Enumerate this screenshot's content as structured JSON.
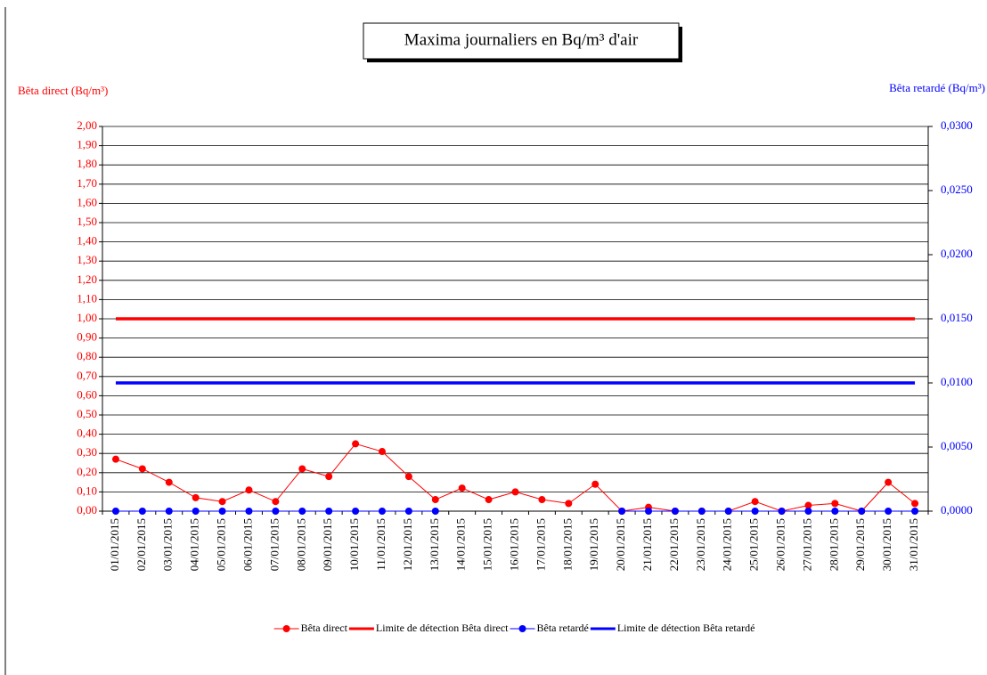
{
  "chart_data": {
    "type": "line",
    "title": "Maxima journaliers en Bq/m³ d'air",
    "ylabel": "Bêta direct (Bq/m³)",
    "y2label": "Bêta retardé (Bq/m³)",
    "categories": [
      "01/01/2015",
      "02/01/2015",
      "03/01/2015",
      "04/01/2015",
      "05/01/2015",
      "06/01/2015",
      "07/01/2015",
      "08/01/2015",
      "09/01/2015",
      "10/01/2015",
      "11/01/2015",
      "12/01/2015",
      "13/01/2015",
      "14/01/2015",
      "15/01/2015",
      "16/01/2015",
      "17/01/2015",
      "18/01/2015",
      "19/01/2015",
      "20/01/2015",
      "21/01/2015",
      "22/01/2015",
      "23/01/2015",
      "24/01/2015",
      "25/01/2015",
      "26/01/2015",
      "27/01/2015",
      "28/01/2015",
      "29/01/2015",
      "30/01/2015",
      "31/01/2015"
    ],
    "series": [
      {
        "name": "Bêta direct",
        "color": "#ff0000",
        "axis": "y",
        "markers": true,
        "values": [
          0.27,
          0.22,
          0.15,
          0.07,
          0.05,
          0.11,
          0.05,
          0.22,
          0.18,
          0.35,
          0.31,
          0.18,
          0.06,
          0.12,
          0.06,
          0.1,
          0.06,
          0.04,
          0.14,
          0.0,
          0.02,
          0.0,
          0.0,
          0.0,
          0.05,
          0.0,
          0.03,
          0.04,
          0.0,
          0.15,
          0.04
        ]
      },
      {
        "name": "Limite de détection Bêta direct",
        "color": "#ff0000",
        "axis": "y",
        "markers": false,
        "values": [
          1,
          1,
          1,
          1,
          1,
          1,
          1,
          1,
          1,
          1,
          1,
          1,
          1,
          1,
          1,
          1,
          1,
          1,
          1,
          1,
          1,
          1,
          1,
          1,
          1,
          1,
          1,
          1,
          1,
          1,
          1
        ]
      },
      {
        "name": "Bêta retardé",
        "color": "#0000ff",
        "axis": "y2",
        "markers": true,
        "values": [
          0,
          0,
          0,
          0,
          0,
          0,
          0,
          0,
          0,
          0,
          0,
          0,
          0,
          null,
          null,
          null,
          null,
          null,
          null,
          0,
          0,
          0,
          0,
          0,
          0,
          0,
          0,
          0,
          0,
          0,
          0
        ]
      },
      {
        "name": "Limite de détection Bêta retardé",
        "color": "#0000ff",
        "axis": "y2",
        "markers": false,
        "values": [
          0.01,
          0.01,
          0.01,
          0.01,
          0.01,
          0.01,
          0.01,
          0.01,
          0.01,
          0.01,
          0.01,
          0.01,
          0.01,
          0.01,
          0.01,
          0.01,
          0.01,
          0.01,
          0.01,
          0.01,
          0.01,
          0.01,
          0.01,
          0.01,
          0.01,
          0.01,
          0.01,
          0.01,
          0.01,
          0.01,
          0.01
        ]
      }
    ],
    "ylim": [
      0,
      2
    ],
    "yticks": [
      {
        "value": 0,
        "label": "0,00"
      },
      {
        "value": 0.1,
        "label": "0,10"
      },
      {
        "value": 0.2,
        "label": "0,20"
      },
      {
        "value": 0.3,
        "label": "0,30"
      },
      {
        "value": 0.4,
        "label": "0,40"
      },
      {
        "value": 0.5,
        "label": "0,50"
      },
      {
        "value": 0.6,
        "label": "0,60"
      },
      {
        "value": 0.7,
        "label": "0,70"
      },
      {
        "value": 0.8,
        "label": "0,80"
      },
      {
        "value": 0.9,
        "label": "0,90"
      },
      {
        "value": 1,
        "label": "1,00"
      },
      {
        "value": 1.1,
        "label": "1,10"
      },
      {
        "value": 1.2,
        "label": "1,20"
      },
      {
        "value": 1.3,
        "label": "1,30"
      },
      {
        "value": 1.4,
        "label": "1,40"
      },
      {
        "value": 1.5,
        "label": "1,50"
      },
      {
        "value": 1.6,
        "label": "1,60"
      },
      {
        "value": 1.7,
        "label": "1,70"
      },
      {
        "value": 1.8,
        "label": "1,80"
      },
      {
        "value": 1.9,
        "label": "1,90"
      },
      {
        "value": 2,
        "label": "2,00"
      }
    ],
    "y2lim": [
      0,
      0.03
    ],
    "y2ticks": [
      {
        "value": 0,
        "label": "0,0000"
      },
      {
        "value": 0.005,
        "label": "0,0050"
      },
      {
        "value": 0.01,
        "label": "0,0100"
      },
      {
        "value": 0.015,
        "label": "0,0150"
      },
      {
        "value": 0.02,
        "label": "0,0200"
      },
      {
        "value": 0.025,
        "label": "0,0250"
      },
      {
        "value": 0.03,
        "label": "0,0300"
      }
    ],
    "grid": true,
    "legend": "bottom"
  }
}
